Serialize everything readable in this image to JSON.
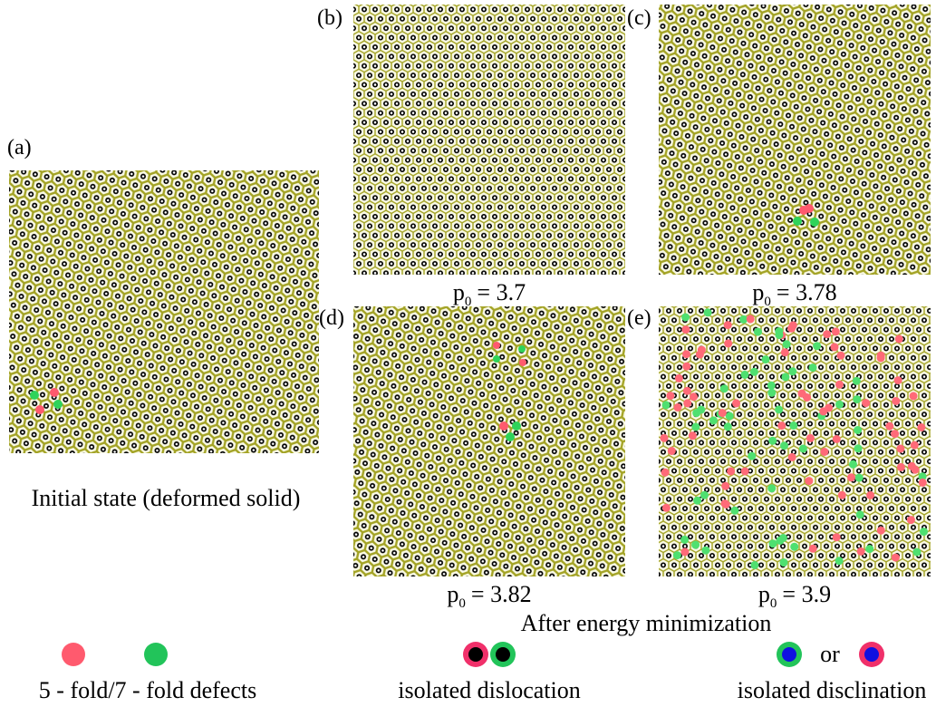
{
  "panels": [
    {
      "label": "(a)",
      "caption": "Initial state (deformed solid)"
    },
    {
      "label": "(b)",
      "caption": {
        "p": "p",
        "sub": "0",
        "eq": "= 3.7"
      }
    },
    {
      "label": "(c)",
      "caption": {
        "p": "p",
        "sub": "0",
        "eq": "= 3.78"
      }
    },
    {
      "label": "(d)",
      "caption": {
        "p": "p",
        "sub": "0",
        "eq": "= 3.82"
      }
    },
    {
      "label": "(e)",
      "caption": {
        "p": "p",
        "sub": "0",
        "eq": "= 3.9"
      }
    }
  ],
  "group_caption": "After energy minimization",
  "legend": {
    "defects": "5 - fold/7 - fold defects",
    "dislocation": "isolated dislocation",
    "or": "or",
    "disclination": "isolated disclination"
  }
}
